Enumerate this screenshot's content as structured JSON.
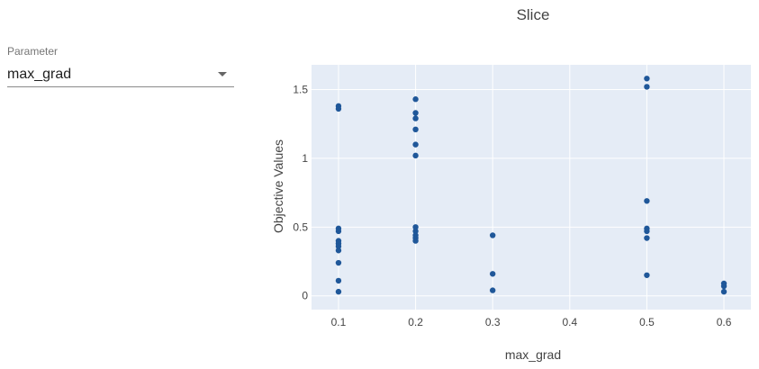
{
  "parameter": {
    "label": "Parameter",
    "selected": "max_grad"
  },
  "icons": {
    "dropdown": "caret-down-icon"
  },
  "colors": {
    "plot_bg": "#e5ecf6",
    "grid": "#ffffff",
    "marker": "#1f5799"
  },
  "chart_data": {
    "type": "scatter",
    "title": "Slice",
    "xlabel": "max_grad",
    "ylabel": "Objective Values",
    "xlim": [
      0.065,
      0.635
    ],
    "ylim": [
      -0.1,
      1.68
    ],
    "xticks": [
      0.1,
      0.2,
      0.3,
      0.4,
      0.5,
      0.6
    ],
    "xtick_labels": [
      "0.1",
      "0.2",
      "0.3",
      "0.4",
      "0.5",
      "0.6"
    ],
    "yticks": [
      0,
      0.5,
      1,
      1.5
    ],
    "ytick_labels": [
      "0",
      "0.5",
      "1",
      "1.5"
    ],
    "grid": true,
    "points": [
      {
        "x": 0.1,
        "y": 1.38
      },
      {
        "x": 0.1,
        "y": 1.36
      },
      {
        "x": 0.1,
        "y": 0.49
      },
      {
        "x": 0.1,
        "y": 0.47
      },
      {
        "x": 0.1,
        "y": 0.4
      },
      {
        "x": 0.1,
        "y": 0.38
      },
      {
        "x": 0.1,
        "y": 0.36
      },
      {
        "x": 0.1,
        "y": 0.33
      },
      {
        "x": 0.1,
        "y": 0.24
      },
      {
        "x": 0.1,
        "y": 0.11
      },
      {
        "x": 0.1,
        "y": 0.03
      },
      {
        "x": 0.2,
        "y": 1.43
      },
      {
        "x": 0.2,
        "y": 1.33
      },
      {
        "x": 0.2,
        "y": 1.29
      },
      {
        "x": 0.2,
        "y": 1.21
      },
      {
        "x": 0.2,
        "y": 1.1
      },
      {
        "x": 0.2,
        "y": 1.02
      },
      {
        "x": 0.2,
        "y": 0.5
      },
      {
        "x": 0.2,
        "y": 0.47
      },
      {
        "x": 0.2,
        "y": 0.44
      },
      {
        "x": 0.2,
        "y": 0.42
      },
      {
        "x": 0.2,
        "y": 0.4
      },
      {
        "x": 0.3,
        "y": 0.44
      },
      {
        "x": 0.3,
        "y": 0.16
      },
      {
        "x": 0.3,
        "y": 0.04
      },
      {
        "x": 0.5,
        "y": 1.58
      },
      {
        "x": 0.5,
        "y": 1.52
      },
      {
        "x": 0.5,
        "y": 0.69
      },
      {
        "x": 0.5,
        "y": 0.49
      },
      {
        "x": 0.5,
        "y": 0.47
      },
      {
        "x": 0.5,
        "y": 0.42
      },
      {
        "x": 0.5,
        "y": 0.15
      },
      {
        "x": 0.6,
        "y": 0.09
      },
      {
        "x": 0.6,
        "y": 0.07
      },
      {
        "x": 0.6,
        "y": 0.03
      }
    ]
  }
}
